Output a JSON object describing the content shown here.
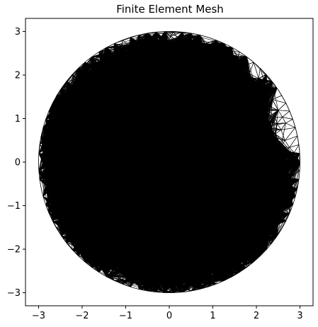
{
  "chart_data": {
    "type": "mesh",
    "title": "Finite Element Mesh",
    "xlabel": "",
    "ylabel": "",
    "xlim": [
      -3.3,
      3.3
    ],
    "ylim": [
      -3.3,
      3.3
    ],
    "xticks": [
      -3,
      -2,
      -1,
      0,
      1,
      2,
      3
    ],
    "yticks": [
      -3,
      -2,
      -1,
      0,
      1,
      2,
      3
    ],
    "xtick_labels": [
      "−3",
      "−2",
      "−1",
      "0",
      "1",
      "2",
      "3"
    ],
    "ytick_labels": [
      "−3",
      "−2",
      "−1",
      "0",
      "1",
      "2",
      "3"
    ],
    "domain": {
      "shape": "circle",
      "center": [
        0,
        0
      ],
      "radius": 3
    },
    "mesh": {
      "element": "triangle",
      "approx_edge_length": 0.2
    },
    "grid": false,
    "line_color": "#000000",
    "background": "#ffffff"
  }
}
